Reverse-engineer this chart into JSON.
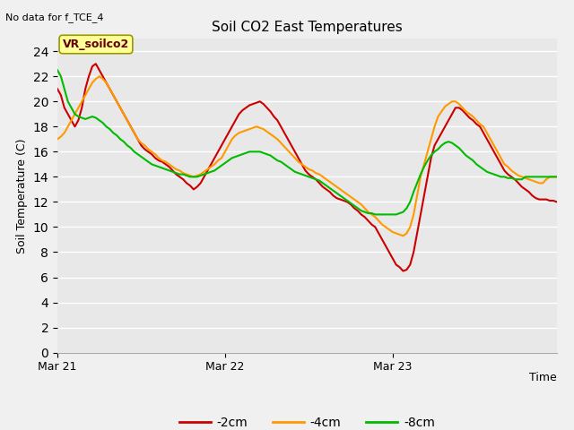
{
  "title": "Soil CO2 East Temperatures",
  "no_data_text": "No data for f_TCE_4",
  "xlabel": "Time",
  "ylabel": "Soil Temperature (C)",
  "ylim": [
    0,
    25
  ],
  "yticks": [
    0,
    2,
    4,
    6,
    8,
    10,
    12,
    14,
    16,
    18,
    20,
    22,
    24
  ],
  "xtick_labels": [
    "Mar 21",
    "Mar 22",
    "Mar 23"
  ],
  "annotation_text": "VR_soilco2",
  "fig_facecolor": "#f0f0f0",
  "plot_bg_color": "#e8e8e8",
  "legend_entries": [
    "-2cm",
    "-4cm",
    "-8cm"
  ],
  "line_colors": [
    "#cc0000",
    "#ff9900",
    "#00bb00"
  ],
  "line_width": 1.5,
  "n_points": 144,
  "series_2cm": [
    21.0,
    20.5,
    19.5,
    19.0,
    18.5,
    18.0,
    18.5,
    19.5,
    21.0,
    22.0,
    22.8,
    23.0,
    22.5,
    22.0,
    21.5,
    21.0,
    20.5,
    20.0,
    19.5,
    19.0,
    18.5,
    18.0,
    17.5,
    17.0,
    16.5,
    16.2,
    16.0,
    15.8,
    15.5,
    15.3,
    15.2,
    15.0,
    14.8,
    14.5,
    14.2,
    14.0,
    13.8,
    13.5,
    13.3,
    13.0,
    13.2,
    13.5,
    14.0,
    14.5,
    15.0,
    15.5,
    16.0,
    16.5,
    17.0,
    17.5,
    18.0,
    18.5,
    19.0,
    19.3,
    19.5,
    19.7,
    19.8,
    19.9,
    20.0,
    19.8,
    19.5,
    19.2,
    18.8,
    18.5,
    18.0,
    17.5,
    17.0,
    16.5,
    16.0,
    15.5,
    15.0,
    14.5,
    14.2,
    14.0,
    13.8,
    13.5,
    13.2,
    13.0,
    12.8,
    12.5,
    12.3,
    12.2,
    12.1,
    12.0,
    11.8,
    11.5,
    11.3,
    11.0,
    10.8,
    10.5,
    10.2,
    10.0,
    9.5,
    9.0,
    8.5,
    8.0,
    7.5,
    7.0,
    6.8,
    6.5,
    6.6,
    7.0,
    8.0,
    9.5,
    11.0,
    12.5,
    14.0,
    15.5,
    16.5,
    17.0,
    17.5,
    18.0,
    18.5,
    19.0,
    19.5,
    19.5,
    19.3,
    19.0,
    18.7,
    18.5,
    18.2,
    18.0,
    17.5,
    17.0,
    16.5,
    16.0,
    15.5,
    15.0,
    14.5,
    14.2,
    14.0,
    13.8,
    13.5,
    13.2,
    13.0,
    12.8,
    12.5,
    12.3,
    12.2,
    12.2,
    12.2,
    12.1,
    12.1,
    12.0
  ],
  "series_4cm": [
    17.0,
    17.2,
    17.5,
    18.0,
    18.5,
    19.0,
    19.5,
    20.0,
    20.5,
    21.0,
    21.5,
    21.8,
    22.0,
    21.8,
    21.5,
    21.0,
    20.5,
    20.0,
    19.5,
    19.0,
    18.5,
    18.0,
    17.5,
    17.0,
    16.7,
    16.5,
    16.2,
    16.0,
    15.8,
    15.5,
    15.3,
    15.2,
    15.0,
    14.8,
    14.6,
    14.5,
    14.3,
    14.2,
    14.1,
    14.0,
    14.1,
    14.2,
    14.4,
    14.6,
    14.8,
    15.0,
    15.3,
    15.5,
    16.0,
    16.5,
    17.0,
    17.3,
    17.5,
    17.6,
    17.7,
    17.8,
    17.9,
    18.0,
    17.9,
    17.8,
    17.6,
    17.4,
    17.2,
    17.0,
    16.7,
    16.4,
    16.1,
    15.8,
    15.5,
    15.2,
    15.0,
    14.8,
    14.6,
    14.5,
    14.3,
    14.2,
    14.0,
    13.8,
    13.6,
    13.4,
    13.2,
    13.0,
    12.8,
    12.6,
    12.4,
    12.2,
    12.0,
    11.8,
    11.5,
    11.2,
    11.0,
    10.8,
    10.5,
    10.2,
    10.0,
    9.8,
    9.6,
    9.5,
    9.4,
    9.3,
    9.5,
    10.0,
    11.0,
    12.5,
    14.0,
    15.0,
    16.0,
    17.0,
    18.0,
    18.8,
    19.2,
    19.6,
    19.8,
    20.0,
    20.0,
    19.8,
    19.5,
    19.2,
    19.0,
    18.8,
    18.5,
    18.2,
    18.0,
    17.5,
    17.0,
    16.5,
    16.0,
    15.5,
    15.0,
    14.8,
    14.5,
    14.3,
    14.1,
    14.0,
    13.9,
    13.8,
    13.7,
    13.6,
    13.5,
    13.5,
    13.8,
    14.0,
    14.0,
    14.0
  ],
  "series_8cm": [
    22.5,
    22.0,
    21.0,
    20.0,
    19.5,
    19.0,
    18.8,
    18.7,
    18.6,
    18.7,
    18.8,
    18.7,
    18.5,
    18.3,
    18.0,
    17.8,
    17.5,
    17.3,
    17.0,
    16.8,
    16.5,
    16.3,
    16.0,
    15.8,
    15.6,
    15.4,
    15.2,
    15.0,
    14.9,
    14.8,
    14.7,
    14.6,
    14.5,
    14.4,
    14.3,
    14.2,
    14.2,
    14.1,
    14.0,
    14.0,
    14.0,
    14.1,
    14.2,
    14.3,
    14.4,
    14.5,
    14.7,
    14.9,
    15.1,
    15.3,
    15.5,
    15.6,
    15.7,
    15.8,
    15.9,
    16.0,
    16.0,
    16.0,
    16.0,
    15.9,
    15.8,
    15.7,
    15.5,
    15.3,
    15.2,
    15.0,
    14.8,
    14.6,
    14.4,
    14.3,
    14.2,
    14.1,
    14.0,
    13.9,
    13.8,
    13.7,
    13.5,
    13.3,
    13.1,
    12.9,
    12.7,
    12.5,
    12.3,
    12.1,
    11.9,
    11.7,
    11.5,
    11.3,
    11.2,
    11.1,
    11.1,
    11.0,
    11.0,
    11.0,
    11.0,
    11.0,
    11.0,
    11.0,
    11.1,
    11.2,
    11.5,
    12.0,
    12.8,
    13.5,
    14.2,
    14.8,
    15.3,
    15.7,
    16.0,
    16.2,
    16.5,
    16.7,
    16.8,
    16.7,
    16.5,
    16.3,
    16.0,
    15.7,
    15.5,
    15.3,
    15.0,
    14.8,
    14.6,
    14.4,
    14.3,
    14.2,
    14.1,
    14.0,
    14.0,
    13.9,
    13.9,
    13.8,
    13.8,
    13.8,
    14.0,
    14.0,
    14.0,
    14.0,
    14.0,
    14.0,
    14.0,
    14.0,
    14.0,
    14.0
  ]
}
